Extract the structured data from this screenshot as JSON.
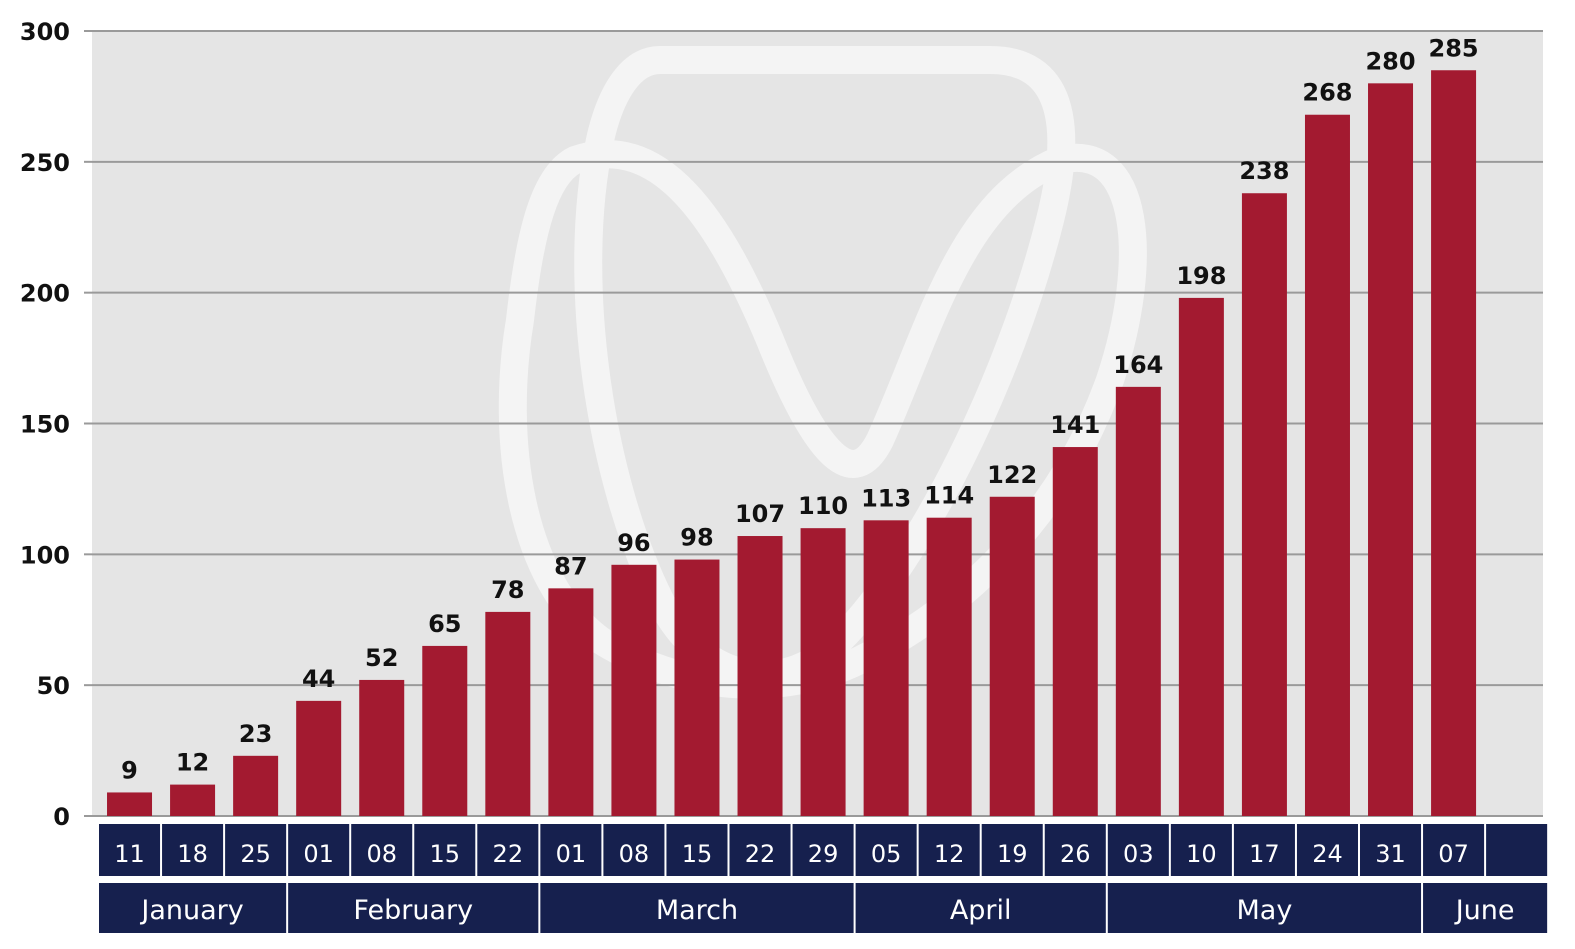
{
  "chart_data": {
    "type": "bar",
    "categories": [
      "11",
      "18",
      "25",
      "01",
      "08",
      "15",
      "22",
      "01",
      "08",
      "15",
      "22",
      "29",
      "05",
      "12",
      "19",
      "26",
      "03",
      "10",
      "17",
      "24",
      "31",
      "07"
    ],
    "values": [
      9,
      12,
      23,
      44,
      52,
      65,
      78,
      87,
      96,
      98,
      107,
      110,
      113,
      114,
      122,
      141,
      164,
      198,
      238,
      268,
      280,
      285
    ],
    "data_labels": [
      "9",
      "12",
      "23",
      "44",
      "52",
      "65",
      "78",
      "87",
      "96",
      "98",
      "107",
      "110",
      "113",
      "114",
      "122",
      "141",
      "164",
      "198",
      "238",
      "268",
      "280",
      "285"
    ],
    "months": [
      {
        "label": "January",
        "span": 3
      },
      {
        "label": "February",
        "span": 4
      },
      {
        "label": "March",
        "span": 5
      },
      {
        "label": "April",
        "span": 4
      },
      {
        "label": "May",
        "span": 5
      },
      {
        "label": "June",
        "span": 2
      }
    ],
    "ylim": [
      0,
      300
    ],
    "yticks": [
      0,
      50,
      100,
      150,
      200,
      250,
      300
    ],
    "ytick_labels": [
      "0",
      "50",
      "100",
      "150",
      "200",
      "250",
      "300"
    ],
    "grid": true,
    "title": "",
    "xlabel": "",
    "ylabel": "",
    "colors": {
      "bar": "#a31a30",
      "plot_background": "#e5e5e5",
      "axis_band": "#16204e",
      "gridline": "#9a9a9a",
      "watermark": "#f4f4f4"
    }
  }
}
